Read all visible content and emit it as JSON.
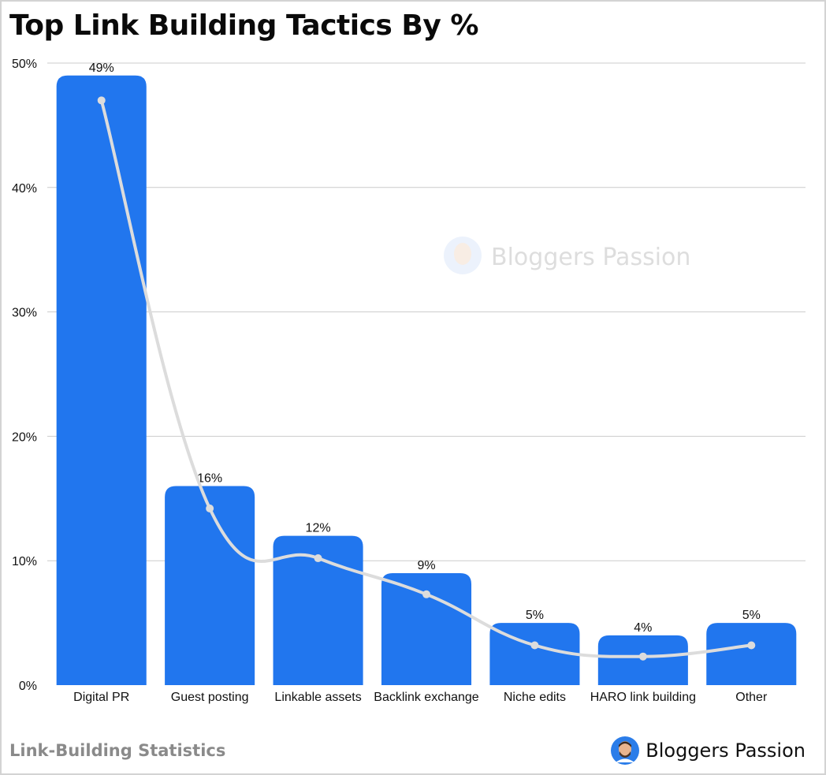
{
  "header": {
    "title": "Top Link Building Tactics By %"
  },
  "footer": {
    "caption": "Link-Building Statistics",
    "brand": "Bloggers Passion"
  },
  "watermark": {
    "text": "Bloggers Passion"
  },
  "colors": {
    "bar": "#2176EE",
    "line": "#dcdcdc",
    "grid": "#cccccc",
    "text": "#111111"
  },
  "chart_data": {
    "type": "bar",
    "categories": [
      "Digital PR",
      "Guest posting",
      "Linkable assets",
      "Backlink exchange",
      "Niche edits",
      "HARO link building",
      "Other"
    ],
    "values": [
      49,
      16,
      12,
      9,
      5,
      4,
      5
    ],
    "data_labels": [
      "49%",
      "16%",
      "12%",
      "9%",
      "5%",
      "4%",
      "5%"
    ],
    "trend_line": [
      47,
      14.2,
      10.2,
      7.3,
      3.2,
      2.3,
      3.2
    ],
    "yticks": [
      "0%",
      "10%",
      "20%",
      "30%",
      "40%",
      "50%"
    ],
    "ylim": [
      0,
      50
    ],
    "grid": true,
    "legend": "none"
  }
}
